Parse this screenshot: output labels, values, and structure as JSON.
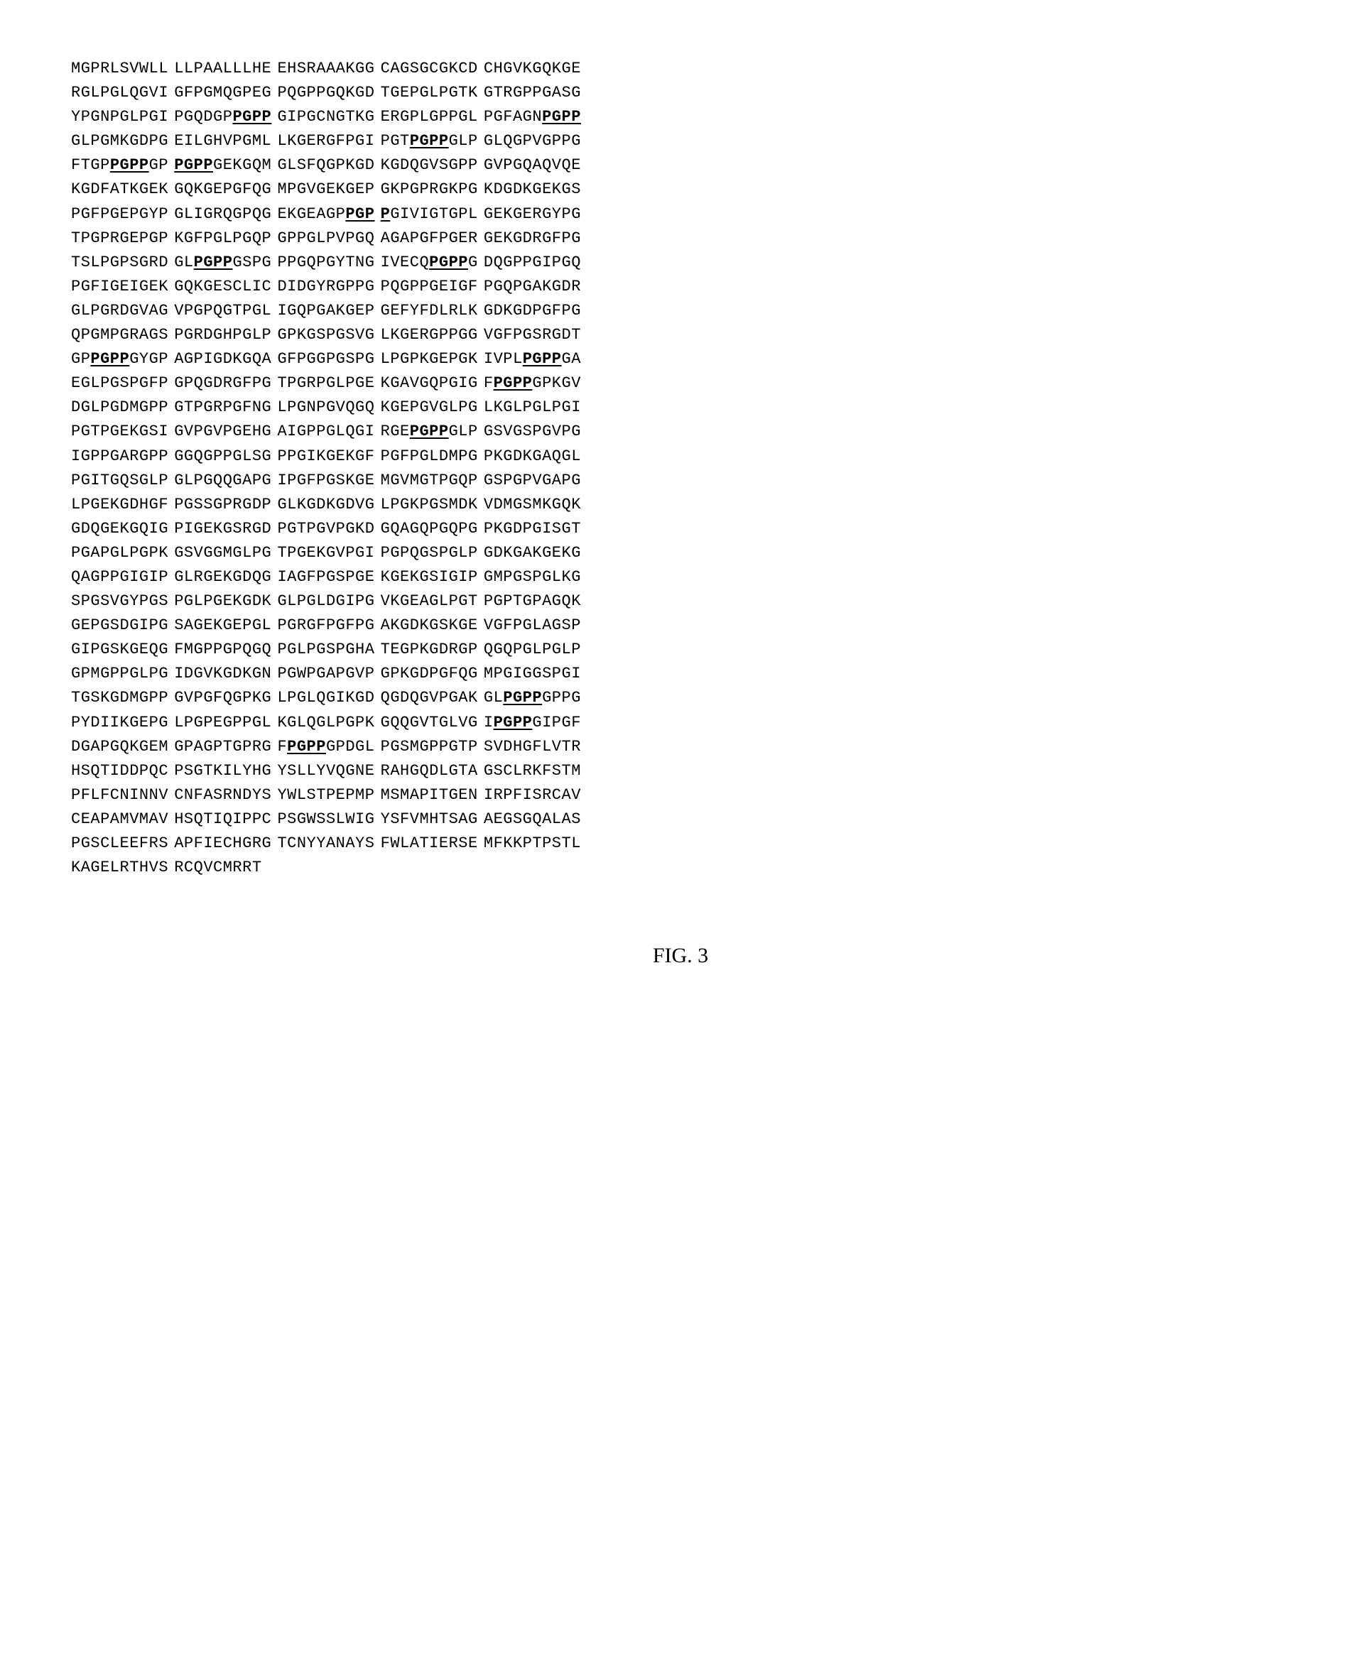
{
  "figure_label": "FIG. 3",
  "motif": "PGPP",
  "motif_extended": "PGP P",
  "font_family": "Courier New",
  "font_size_pt": 22,
  "background_color": "#ffffff",
  "text_color": "#000000",
  "columns_per_row": 5,
  "chars_per_column": 10,
  "rows": [
    [
      "MGPRLSVWLL",
      "LLPAALLLHE",
      "EHSRAAAKGG",
      "CAGSGCGKCD",
      "CHGVKGQKGE"
    ],
    [
      "RGLPGLQGVI",
      "GFPGMQGPEG",
      "PQGPPGQKGD",
      "TGEPGLPGTK",
      "GTRGPPGASG"
    ],
    [
      "YPGNPGLPGI",
      "PGQDGP{M}",
      "GIPGCNGTKG",
      "ERGPLGPPGL",
      "PGFAGN{M}"
    ],
    [
      "GLPGMKGDPG",
      "EILGHVPGML",
      "LKGERGFPGI",
      "PGT{M}GLP",
      "GLQGPVGPPG"
    ],
    [
      "FTGP{M}GP",
      "{M}GEKGQM",
      "GLSFQGPKGD",
      "KGDQGVSGPP",
      "GVPGQAQVQE"
    ],
    [
      "KGDFATKGEK",
      "GQKGEPGFQG",
      "MPGVGEKGEP",
      "GKPGPRGKPG",
      "KDGDKGEKGS"
    ],
    [
      "PGFPGEPGYP",
      "GLIGRQGPQG",
      "EKGEAGP{X1}",
      "{X2}GIVIGTGPL",
      "GEKGERGYPG"
    ],
    [
      "TPGPRGEPGP",
      "KGFPGLPGQP",
      "GPPGLPVPGQ",
      "AGAPGFPGER",
      "GEKGDRGFPG"
    ],
    [
      "TSLPGPSGRD",
      "GL{M}GSPG",
      "PPGQPGYTNG",
      "IVECQ{M}G",
      "DQGPPGIPGQ"
    ],
    [
      "PGFIGEIGEK",
      "GQKGESCLIC",
      "DIDGYRGPPG",
      "PQGPPGEIGF",
      "PGQPGAKGDR"
    ],
    [
      "GLPGRDGVAG",
      "VPGPQGTPGL",
      "IGQPGAKGEP",
      "GEFYFDLRLK",
      "GDKGDPGFPG"
    ],
    [
      "QPGMPGRAGS",
      "PGRDGHPGLP",
      "GPKGSPGSVG",
      "LKGERGPPGG",
      "VGFPGSRGDT"
    ],
    [
      "GP{M}GYGP",
      "AGPIGDKGQA",
      "GFPGGPGSPG",
      "LPGPKGEPGK",
      "IVPL{M}GA"
    ],
    [
      "EGLPGSPGFP",
      "GPQGDRGFPG",
      "TPGRPGLPGE",
      "KGAVGQPGIG",
      "F{M}GPKGV"
    ],
    [
      "DGLPGDMGPP",
      "GTPGRPGFNG",
      "LPGNPGVQGQ",
      "KGEPGVGLPG",
      "LKGLPGLPGI"
    ],
    [
      "PGTPGEKGSI",
      "GVPGVPGEHG",
      "AIGPPGLQGI",
      "RGE{M}GLP",
      "GSVGSPGVPG"
    ],
    [
      "IGPPGARGPP",
      "GGQGPPGLSG",
      "PPGIKGEKGF",
      "PGFPGLDMPG",
      "PKGDKGAQGL"
    ],
    [
      "PGITGQSGLP",
      "GLPGQQGAPG",
      "IPGFPGSKGE",
      "MGVMGTPGQP",
      "GSPGPVGAPG"
    ],
    [
      "LPGEKGDHGF",
      "PGSSGPRGDP",
      "GLKGDKGDVG",
      "LPGKPGSMDK",
      "VDMGSMKGQK"
    ],
    [
      "GDQGEKGQIG",
      "PIGEKGSRGD",
      "PGTPGVPGKD",
      "GQAGQPGQPG",
      "PKGDPGISGT"
    ],
    [
      "PGAPGLPGPK",
      "GSVGGMGLPG",
      "TPGEKGVPGI",
      "PGPQGSPGLP",
      "GDKGAKGEKG"
    ],
    [
      "QAGPPGIGIP",
      "GLRGEKGDQG",
      "IAGFPGSPGE",
      "KGEKGSIGIP",
      "GMPGSPGLKG"
    ],
    [
      "SPGSVGYPGS",
      "PGLPGEKGDK",
      "GLPGLDGIPG",
      "VKGEAGLPGT",
      "PGPTGPAGQK"
    ],
    [
      "GEPGSDGIPG",
      "SAGEKGEPGL",
      "PGRGFPGFPG",
      "AKGDKGSKGE",
      "VGFPGLAGSP"
    ],
    [
      "GIPGSKGEQG",
      "FMGPPGPQGQ",
      "PGLPGSPGHA",
      "TEGPKGDRGP",
      "QGQPGLPGLP"
    ],
    [
      "GPMGPPGLPG",
      "IDGVKGDKGN",
      "PGWPGAPGVP",
      "GPKGDPGFQG",
      "MPGIGGSPGI"
    ],
    [
      "TGSKGDMGPP",
      "GVPGFQGPKG",
      "LPGLQGIKGD",
      "QGDQGVPGAK",
      "GL{M}GPPG"
    ],
    [
      "PYDIIKGEPG",
      "LPGPEGPPGL",
      "KGLQGLPGPK",
      "GQQGVTGLVG",
      "I{M}GIPGF"
    ],
    [
      "DGAPGQKGEM",
      "GPAGPTGPRG",
      "F{M}GPDGL",
      "PGSMGPPGTP",
      "SVDHGFLVTR"
    ],
    [
      "HSQTIDDPQC",
      "PSGTKILYHG",
      "YSLLYVQGNE",
      "RAHGQDLGTA",
      "GSCLRKFSTM"
    ],
    [
      "PFLFCNINNV",
      "CNFASRNDYS",
      "YWLSTPEPMP",
      "MSMAPITGEN",
      "IRPFISRCAV"
    ],
    [
      "CEAPAMVMAV",
      "HSQTIQIPPC",
      "PSGWSSLWIG",
      "YSFVMHTSAG",
      "AEGSGQALAS"
    ],
    [
      "PGSCLEEFRS",
      "APFIECHGRG",
      "TCNYYANAYS",
      "FWLATIERSE",
      "MFKKPTPSTL"
    ],
    [
      "KAGELRTHVS",
      "RCQVCMRRT"
    ]
  ]
}
